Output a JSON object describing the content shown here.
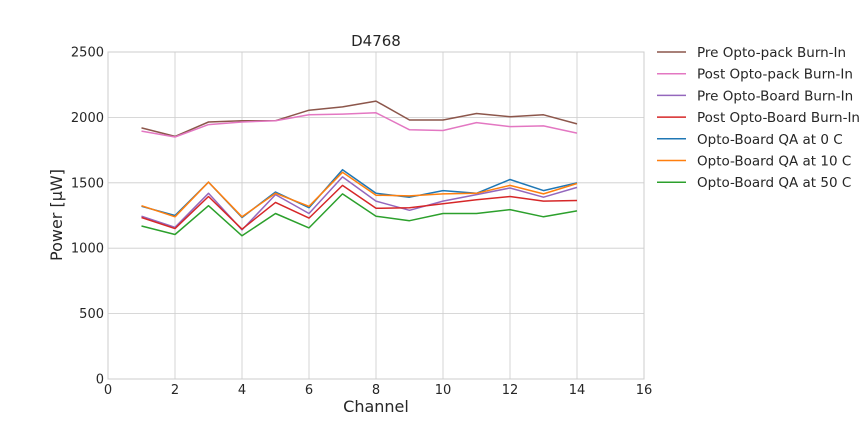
{
  "chart_data": {
    "type": "line",
    "title": "D4768",
    "xlabel": "Channel",
    "ylabel": "Power [μW]",
    "xlim": [
      0,
      16
    ],
    "ylim": [
      0,
      2500
    ],
    "xticks": [
      0,
      2,
      4,
      6,
      8,
      10,
      12,
      14,
      16
    ],
    "yticks": [
      0,
      500,
      1000,
      1500,
      2000,
      2500
    ],
    "grid": true,
    "legend_position": "outside-right",
    "x": [
      1,
      2,
      3,
      4,
      5,
      6,
      7,
      8,
      9,
      10,
      11,
      12,
      13,
      14
    ],
    "series": [
      {
        "name": "Pre Opto-pack Burn-In",
        "color": "#8c564b",
        "values": [
          1920,
          1855,
          1965,
          1975,
          1975,
          2055,
          2080,
          2125,
          1980,
          1980,
          2030,
          2005,
          2020,
          1950
        ]
      },
      {
        "name": "Post Opto-pack Burn-In",
        "color": "#e377c2",
        "values": [
          1895,
          1850,
          1945,
          1965,
          1975,
          2020,
          2025,
          2035,
          1905,
          1900,
          1960,
          1930,
          1935,
          1880
        ]
      },
      {
        "name": "Pre Opto-Board Burn-In",
        "color": "#9467bd",
        "values": [
          1245,
          1160,
          1420,
          1140,
          1410,
          1265,
          1545,
          1360,
          1290,
          1360,
          1410,
          1460,
          1390,
          1465
        ]
      },
      {
        "name": "Post Opto-Board Burn-In",
        "color": "#d62728",
        "values": [
          1235,
          1150,
          1395,
          1145,
          1350,
          1230,
          1480,
          1305,
          1310,
          1340,
          1370,
          1395,
          1360,
          1365
        ]
      },
      {
        "name": "Opto-Board QA at 0 C",
        "color": "#1f77b4",
        "values": [
          1320,
          1250,
          1505,
          1235,
          1430,
          1310,
          1600,
          1420,
          1390,
          1440,
          1420,
          1525,
          1440,
          1500
        ]
      },
      {
        "name": "Opto-Board QA at 10 C",
        "color": "#ff7f0e",
        "values": [
          1325,
          1240,
          1505,
          1240,
          1420,
          1320,
          1580,
          1405,
          1400,
          1415,
          1420,
          1480,
          1415,
          1495
        ]
      },
      {
        "name": "Opto-Board QA at 50 C",
        "color": "#2ca02c",
        "values": [
          1170,
          1105,
          1325,
          1095,
          1265,
          1155,
          1415,
          1245,
          1210,
          1265,
          1265,
          1295,
          1240,
          1285
        ]
      }
    ]
  }
}
